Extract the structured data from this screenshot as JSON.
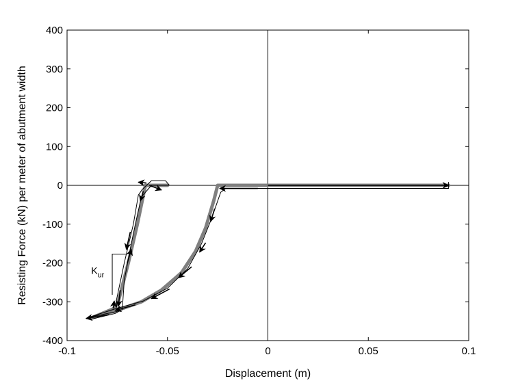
{
  "chart_data": {
    "type": "line",
    "xlabel": "Displacement (m)",
    "ylabel": "Resisting Force (kN) per meter of abutment width",
    "xlim": [
      -0.1,
      0.1
    ],
    "ylim": [
      -400,
      400
    ],
    "xticks": [
      -0.1,
      -0.05,
      0,
      0.05,
      0.1
    ],
    "xtick_labels": [
      "-0.1",
      "-0.05",
      "0",
      "0.05",
      "0.1"
    ],
    "yticks": [
      -400,
      -300,
      -200,
      -100,
      0,
      100,
      200,
      300,
      400
    ],
    "ytick_labels": [
      "-400",
      "-300",
      "-200",
      "-100",
      "0",
      "100",
      "200",
      "300",
      "400"
    ],
    "grid": false,
    "zero_lines": true,
    "annotation": {
      "text": "K",
      "subscript": "ur",
      "x": -0.076,
      "y": -225
    },
    "series": [
      {
        "color": "#808080",
        "style": "thick",
        "points": [
          [
            0.09,
            0
          ],
          [
            -0.025,
            0
          ],
          [
            -0.027,
            -40
          ],
          [
            -0.031,
            -110
          ],
          [
            -0.036,
            -170
          ],
          [
            -0.043,
            -225
          ],
          [
            -0.053,
            -270
          ],
          [
            -0.063,
            -300
          ],
          [
            -0.075,
            -322
          ],
          [
            -0.088,
            -342
          ],
          [
            -0.077,
            -318
          ],
          [
            -0.0745,
            -300
          ],
          [
            -0.0695,
            -200
          ],
          [
            -0.065,
            -100
          ],
          [
            -0.061,
            0
          ],
          [
            -0.05,
            0
          ]
        ]
      },
      {
        "color": "#000000",
        "style": "thin",
        "points": [
          [
            0.09,
            8
          ],
          [
            0.09,
            -8
          ],
          [
            -0.021,
            -8
          ],
          [
            -0.0235,
            -18
          ],
          [
            -0.028,
            -85
          ],
          [
            -0.033,
            -150
          ],
          [
            -0.04,
            -215
          ],
          [
            -0.05,
            -265
          ],
          [
            -0.062,
            -298
          ],
          [
            -0.076,
            -318
          ],
          [
            -0.089,
            -340
          ],
          [
            -0.075,
            -325
          ],
          [
            -0.0755,
            -298
          ],
          [
            -0.0715,
            -200
          ],
          [
            -0.067,
            -100
          ],
          [
            -0.0645,
            -25
          ],
          [
            -0.0625,
            -10
          ],
          [
            -0.058,
            12
          ],
          [
            -0.051,
            12
          ],
          [
            -0.049,
            0
          ],
          [
            -0.058,
            0
          ],
          [
            -0.063,
            -30
          ],
          [
            -0.066,
            -100
          ],
          [
            -0.068,
            -150
          ],
          [
            -0.0715,
            -245
          ],
          [
            -0.0725,
            -320
          ],
          [
            -0.076,
            -330
          ],
          [
            -0.088,
            -345
          ]
        ]
      }
    ],
    "arrows": [
      {
        "from": [
          0.0,
          0
        ],
        "to": [
          0.09,
          0
        ]
      },
      {
        "from": [
          -0.005,
          -8
        ],
        "to": [
          -0.024,
          -8
        ]
      },
      {
        "from": [
          -0.0265,
          -60
        ],
        "to": [
          -0.0285,
          -93
        ]
      },
      {
        "from": [
          -0.031,
          -148
        ],
        "to": [
          -0.034,
          -172
        ]
      },
      {
        "from": [
          -0.038,
          -210
        ],
        "to": [
          -0.0445,
          -238
        ]
      },
      {
        "from": [
          -0.049,
          -267
        ],
        "to": [
          -0.058,
          -292
        ]
      },
      {
        "from": [
          -0.066,
          -308
        ],
        "to": [
          -0.076,
          -322
        ]
      },
      {
        "from": [
          -0.079,
          -333
        ],
        "to": [
          -0.0905,
          -343
        ]
      },
      {
        "from": [
          -0.077,
          -317
        ],
        "to": [
          -0.0765,
          -298
        ]
      },
      {
        "from": [
          -0.07,
          -200
        ],
        "to": [
          -0.068,
          -165
        ]
      },
      {
        "from": [
          -0.0605,
          6
        ],
        "to": [
          -0.0645,
          8
        ]
      },
      {
        "from": [
          -0.059,
          0
        ],
        "to": [
          -0.053,
          -12
        ]
      },
      {
        "from": [
          -0.062,
          -15
        ],
        "to": [
          -0.0635,
          -40
        ]
      },
      {
        "from": [
          -0.0685,
          -120
        ],
        "to": [
          -0.0705,
          -165
        ]
      },
      {
        "from": [
          -0.0735,
          -270
        ],
        "to": [
          -0.0745,
          -312
        ]
      }
    ]
  }
}
